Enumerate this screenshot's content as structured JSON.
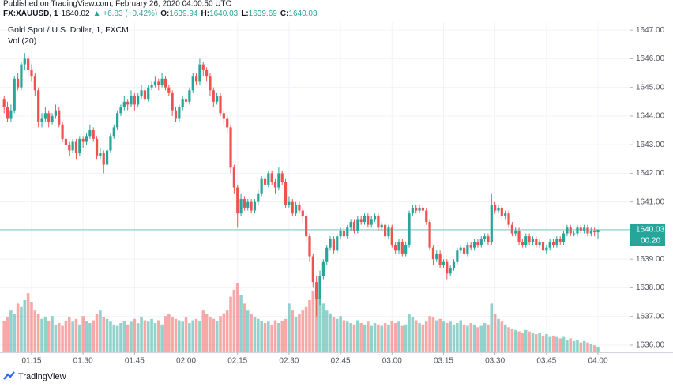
{
  "header": {
    "published": "Published on TradingView.com, February 26, 2020 04:00:50 UTC",
    "symbol": "FX:XAUUSD, 1",
    "last": "1640.02",
    "change": "▲ +6.83 (+0.42%)",
    "fields": [
      {
        "label": "O:",
        "value": "1639.94"
      },
      {
        "label": "H:",
        "value": "1640.03"
      },
      {
        "label": "L:",
        "value": "1639.69"
      },
      {
        "label": "C:",
        "value": "1640.03"
      }
    ]
  },
  "footer": {
    "brand": "TradingView"
  },
  "chart_data": {
    "type": "candlestick",
    "title": "Gold Spot / U.S. Dollar, 1, FXCM",
    "volume_label": "Vol (20)",
    "up_color": "#26a69a",
    "down_color": "#ef5350",
    "grid": true,
    "price_line": 1640.03,
    "countdown": "00:20",
    "xlim": [
      -1.2,
      182.2
    ],
    "ylim": [
      1635.75,
      1647.28
    ],
    "y2lim": [
      0,
      475
    ],
    "xticks": [
      {
        "value": 8,
        "label": "01:15"
      },
      {
        "value": 23,
        "label": "01:30"
      },
      {
        "value": 38,
        "label": "01:45"
      },
      {
        "value": 53,
        "label": "02:00"
      },
      {
        "value": 68,
        "label": "02:15"
      },
      {
        "value": 83,
        "label": "02:30"
      },
      {
        "value": 98,
        "label": "02:45"
      },
      {
        "value": 113,
        "label": "03:00"
      },
      {
        "value": 128,
        "label": "03:15"
      },
      {
        "value": 143,
        "label": "03:30"
      },
      {
        "value": 158,
        "label": "03:45"
      },
      {
        "value": 173,
        "label": "04:00"
      }
    ],
    "yticks": [
      {
        "value": 1636,
        "label": "1636.00"
      },
      {
        "value": 1637,
        "label": "1637.00"
      },
      {
        "value": 1638,
        "label": "1638.00"
      },
      {
        "value": 1639,
        "label": "1639.00"
      },
      {
        "value": 1640,
        "label": "1640.00"
      },
      {
        "value": 1641,
        "label": "1641.00"
      },
      {
        "value": 1642,
        "label": "1642.00"
      },
      {
        "value": 1643,
        "label": "1643.00"
      },
      {
        "value": 1644,
        "label": "1644.00"
      },
      {
        "value": 1645,
        "label": "1645.00"
      },
      {
        "value": 1646,
        "label": "1646.00"
      },
      {
        "value": 1647,
        "label": "1647.00"
      }
    ],
    "ohlc": [
      [
        1644.6,
        1644.7,
        1644.1,
        1644.3
      ],
      [
        1644.3,
        1644.5,
        1643.8,
        1643.9
      ],
      [
        1643.9,
        1644.4,
        1643.8,
        1644.2
      ],
      [
        1644.2,
        1645.4,
        1644.1,
        1645.3
      ],
      [
        1645.3,
        1645.5,
        1644.9,
        1645.0
      ],
      [
        1645.0,
        1645.9,
        1644.9,
        1645.8
      ],
      [
        1645.8,
        1646.2,
        1645.6,
        1646.0
      ],
      [
        1646.0,
        1646.1,
        1645.4,
        1645.6
      ],
      [
        1645.6,
        1645.8,
        1645.2,
        1645.4
      ],
      [
        1645.4,
        1645.5,
        1644.7,
        1644.9
      ],
      [
        1644.9,
        1645.0,
        1643.6,
        1643.8
      ],
      [
        1643.8,
        1644.1,
        1643.6,
        1643.9
      ],
      [
        1643.9,
        1644.3,
        1643.8,
        1644.1
      ],
      [
        1644.1,
        1644.2,
        1643.6,
        1643.8
      ],
      [
        1643.8,
        1644.1,
        1643.7,
        1644.0
      ],
      [
        1644.0,
        1644.4,
        1643.9,
        1644.2
      ],
      [
        1644.2,
        1644.3,
        1643.6,
        1643.7
      ],
      [
        1643.7,
        1643.8,
        1643.1,
        1643.2
      ],
      [
        1643.2,
        1643.4,
        1642.9,
        1643.0
      ],
      [
        1643.0,
        1643.1,
        1642.6,
        1642.8
      ],
      [
        1642.8,
        1643.2,
        1642.7,
        1643.1
      ],
      [
        1643.1,
        1643.2,
        1642.5,
        1642.7
      ],
      [
        1642.7,
        1643.3,
        1642.6,
        1643.2
      ],
      [
        1643.2,
        1643.3,
        1642.9,
        1643.1
      ],
      [
        1643.1,
        1643.4,
        1643.0,
        1643.3
      ],
      [
        1643.3,
        1643.7,
        1643.2,
        1643.5
      ],
      [
        1643.5,
        1643.6,
        1643.1,
        1643.2
      ],
      [
        1643.2,
        1643.3,
        1642.5,
        1642.6
      ],
      [
        1642.6,
        1642.9,
        1642.5,
        1642.7
      ],
      [
        1642.7,
        1642.8,
        1642.0,
        1642.3
      ],
      [
        1642.3,
        1642.9,
        1642.2,
        1642.8
      ],
      [
        1642.8,
        1643.4,
        1642.7,
        1643.3
      ],
      [
        1643.3,
        1643.7,
        1643.2,
        1643.6
      ],
      [
        1643.6,
        1644.2,
        1643.5,
        1644.1
      ],
      [
        1644.1,
        1644.4,
        1644.0,
        1644.3
      ],
      [
        1644.3,
        1644.7,
        1644.2,
        1644.5
      ],
      [
        1644.5,
        1644.6,
        1644.2,
        1644.4
      ],
      [
        1644.4,
        1644.9,
        1644.3,
        1644.7
      ],
      [
        1644.7,
        1644.8,
        1644.2,
        1644.4
      ],
      [
        1644.4,
        1644.8,
        1644.3,
        1644.7
      ],
      [
        1644.7,
        1645.1,
        1644.6,
        1644.9
      ],
      [
        1644.9,
        1645.0,
        1644.5,
        1644.6
      ],
      [
        1644.6,
        1645.1,
        1644.5,
        1645.0
      ],
      [
        1645.0,
        1645.2,
        1644.9,
        1645.1
      ],
      [
        1645.1,
        1645.4,
        1645.0,
        1645.2
      ],
      [
        1645.2,
        1645.3,
        1644.9,
        1645.1
      ],
      [
        1645.1,
        1645.5,
        1645.0,
        1645.3
      ],
      [
        1645.3,
        1645.4,
        1644.9,
        1645.0
      ],
      [
        1645.0,
        1645.1,
        1644.7,
        1644.8
      ],
      [
        1644.8,
        1644.9,
        1644.0,
        1644.2
      ],
      [
        1644.2,
        1644.3,
        1643.8,
        1643.9
      ],
      [
        1643.9,
        1644.4,
        1643.8,
        1644.3
      ],
      [
        1644.3,
        1644.7,
        1644.2,
        1644.6
      ],
      [
        1644.6,
        1644.7,
        1644.3,
        1644.5
      ],
      [
        1644.5,
        1645.0,
        1644.4,
        1644.9
      ],
      [
        1644.9,
        1645.5,
        1644.8,
        1645.4
      ],
      [
        1645.4,
        1645.5,
        1645.1,
        1645.2
      ],
      [
        1645.2,
        1646.0,
        1645.1,
        1645.8
      ],
      [
        1645.8,
        1645.9,
        1645.4,
        1645.6
      ],
      [
        1645.6,
        1645.7,
        1645.2,
        1645.4
      ],
      [
        1645.4,
        1645.5,
        1644.7,
        1644.9
      ],
      [
        1644.9,
        1645.0,
        1644.3,
        1644.5
      ],
      [
        1644.5,
        1644.8,
        1644.4,
        1644.7
      ],
      [
        1644.7,
        1644.8,
        1644.0,
        1644.1
      ],
      [
        1644.1,
        1644.2,
        1643.7,
        1643.9
      ],
      [
        1643.9,
        1644.0,
        1643.4,
        1643.6
      ],
      [
        1643.6,
        1643.7,
        1642.0,
        1642.2
      ],
      [
        1642.2,
        1642.3,
        1641.3,
        1641.5
      ],
      [
        1641.5,
        1641.6,
        1640.1,
        1640.6
      ],
      [
        1640.6,
        1641.3,
        1640.5,
        1641.1
      ],
      [
        1641.1,
        1641.2,
        1640.7,
        1640.8
      ],
      [
        1640.8,
        1641.1,
        1640.7,
        1641.0
      ],
      [
        1641.0,
        1641.1,
        1640.6,
        1640.7
      ],
      [
        1640.7,
        1641.1,
        1640.6,
        1641.0
      ],
      [
        1641.0,
        1641.4,
        1640.9,
        1641.3
      ],
      [
        1641.3,
        1641.9,
        1641.2,
        1641.8
      ],
      [
        1641.8,
        1641.9,
        1641.4,
        1641.6
      ],
      [
        1641.6,
        1642.1,
        1641.5,
        1642.0
      ],
      [
        1642.0,
        1642.1,
        1641.6,
        1641.7
      ],
      [
        1641.7,
        1641.8,
        1641.3,
        1641.5
      ],
      [
        1641.5,
        1642.2,
        1641.4,
        1642.0
      ],
      [
        1642.0,
        1642.1,
        1641.6,
        1641.7
      ],
      [
        1641.7,
        1641.8,
        1640.8,
        1640.9
      ],
      [
        1640.9,
        1641.2,
        1640.8,
        1641.0
      ],
      [
        1641.0,
        1641.1,
        1640.5,
        1640.6
      ],
      [
        1640.6,
        1641.0,
        1640.5,
        1640.9
      ],
      [
        1640.9,
        1641.0,
        1640.6,
        1640.7
      ],
      [
        1640.7,
        1640.8,
        1640.3,
        1640.5
      ],
      [
        1640.5,
        1640.6,
        1639.6,
        1639.8
      ],
      [
        1639.8,
        1639.9,
        1638.9,
        1639.1
      ],
      [
        1639.1,
        1639.2,
        1638.0,
        1638.2
      ],
      [
        1638.2,
        1638.4,
        1637.0,
        1637.6
      ],
      [
        1637.6,
        1638.6,
        1637.4,
        1638.4
      ],
      [
        1638.4,
        1639.0,
        1638.3,
        1638.9
      ],
      [
        1638.9,
        1639.5,
        1638.8,
        1639.4
      ],
      [
        1639.4,
        1639.8,
        1639.3,
        1639.7
      ],
      [
        1639.7,
        1639.8,
        1639.2,
        1639.3
      ],
      [
        1639.3,
        1639.9,
        1639.2,
        1639.8
      ],
      [
        1639.8,
        1640.1,
        1639.7,
        1640.0
      ],
      [
        1640.0,
        1640.1,
        1639.7,
        1639.8
      ],
      [
        1639.8,
        1640.2,
        1639.7,
        1640.1
      ],
      [
        1640.1,
        1640.4,
        1640.0,
        1640.3
      ],
      [
        1640.3,
        1640.4,
        1639.9,
        1640.0
      ],
      [
        1640.0,
        1640.5,
        1639.9,
        1640.4
      ],
      [
        1640.4,
        1640.5,
        1640.2,
        1640.3
      ],
      [
        1640.3,
        1640.6,
        1640.2,
        1640.5
      ],
      [
        1640.5,
        1640.6,
        1640.1,
        1640.2
      ],
      [
        1640.2,
        1640.5,
        1640.1,
        1640.4
      ],
      [
        1640.4,
        1640.6,
        1640.3,
        1640.5
      ],
      [
        1640.5,
        1640.6,
        1640.0,
        1640.1
      ],
      [
        1640.1,
        1640.3,
        1640.0,
        1640.2
      ],
      [
        1640.2,
        1640.3,
        1639.7,
        1639.8
      ],
      [
        1639.8,
        1640.2,
        1639.7,
        1640.1
      ],
      [
        1640.1,
        1640.2,
        1639.4,
        1639.5
      ],
      [
        1639.5,
        1639.6,
        1639.2,
        1639.3
      ],
      [
        1639.3,
        1639.7,
        1639.2,
        1639.6
      ],
      [
        1639.6,
        1639.7,
        1639.1,
        1639.2
      ],
      [
        1639.2,
        1639.6,
        1639.1,
        1639.5
      ],
      [
        1639.5,
        1640.7,
        1639.4,
        1640.6
      ],
      [
        1640.6,
        1640.9,
        1640.5,
        1640.8
      ],
      [
        1640.8,
        1640.9,
        1640.6,
        1640.7
      ],
      [
        1640.7,
        1640.9,
        1640.6,
        1640.8
      ],
      [
        1640.8,
        1640.9,
        1640.6,
        1640.7
      ],
      [
        1640.7,
        1640.8,
        1640.2,
        1640.3
      ],
      [
        1640.3,
        1640.4,
        1639.3,
        1639.4
      ],
      [
        1639.4,
        1639.5,
        1638.8,
        1639.0
      ],
      [
        1639.0,
        1639.3,
        1638.9,
        1639.2
      ],
      [
        1639.2,
        1639.3,
        1638.7,
        1638.8
      ],
      [
        1638.8,
        1639.0,
        1638.7,
        1638.9
      ],
      [
        1638.9,
        1639.0,
        1638.3,
        1638.5
      ],
      [
        1638.5,
        1638.8,
        1638.4,
        1638.7
      ],
      [
        1638.7,
        1639.0,
        1638.6,
        1638.9
      ],
      [
        1638.9,
        1639.4,
        1638.8,
        1639.3
      ],
      [
        1639.3,
        1639.5,
        1639.2,
        1639.4
      ],
      [
        1639.4,
        1639.5,
        1639.1,
        1639.2
      ],
      [
        1639.2,
        1639.6,
        1639.1,
        1639.5
      ],
      [
        1639.5,
        1639.6,
        1639.3,
        1639.4
      ],
      [
        1639.4,
        1639.7,
        1639.3,
        1639.6
      ],
      [
        1639.6,
        1639.7,
        1639.4,
        1639.5
      ],
      [
        1639.5,
        1639.8,
        1639.4,
        1639.7
      ],
      [
        1639.7,
        1639.9,
        1639.6,
        1639.8
      ],
      [
        1639.8,
        1639.9,
        1639.5,
        1639.6
      ],
      [
        1639.6,
        1641.3,
        1639.5,
        1640.9
      ],
      [
        1640.9,
        1641.0,
        1640.6,
        1640.7
      ],
      [
        1640.7,
        1640.9,
        1640.6,
        1640.8
      ],
      [
        1640.8,
        1640.9,
        1640.4,
        1640.5
      ],
      [
        1640.5,
        1640.7,
        1640.4,
        1640.6
      ],
      [
        1640.6,
        1640.7,
        1640.1,
        1640.2
      ],
      [
        1640.2,
        1640.3,
        1639.8,
        1639.9
      ],
      [
        1639.9,
        1640.1,
        1639.8,
        1640.0
      ],
      [
        1640.0,
        1640.1,
        1639.5,
        1639.6
      ],
      [
        1639.6,
        1639.7,
        1639.4,
        1639.5
      ],
      [
        1639.5,
        1639.9,
        1639.4,
        1639.8
      ],
      [
        1639.8,
        1639.9,
        1639.5,
        1639.6
      ],
      [
        1639.6,
        1639.8,
        1639.5,
        1639.7
      ],
      [
        1639.7,
        1639.8,
        1639.4,
        1639.5
      ],
      [
        1639.5,
        1639.7,
        1639.4,
        1639.6
      ],
      [
        1639.6,
        1639.7,
        1639.2,
        1639.3
      ],
      [
        1639.3,
        1639.5,
        1639.2,
        1639.4
      ],
      [
        1639.4,
        1639.7,
        1639.3,
        1639.6
      ],
      [
        1639.6,
        1639.7,
        1639.4,
        1639.5
      ],
      [
        1639.5,
        1639.8,
        1639.4,
        1639.7
      ],
      [
        1639.7,
        1639.8,
        1639.5,
        1639.6
      ],
      [
        1639.6,
        1640.0,
        1639.5,
        1639.9
      ],
      [
        1639.9,
        1640.2,
        1639.8,
        1640.1
      ],
      [
        1640.1,
        1640.2,
        1639.8,
        1639.9
      ],
      [
        1639.9,
        1640.0,
        1639.8,
        1639.9
      ],
      [
        1639.9,
        1640.2,
        1639.8,
        1640.1
      ],
      [
        1640.1,
        1640.2,
        1639.9,
        1640.0
      ],
      [
        1640.0,
        1640.2,
        1639.9,
        1640.1
      ],
      [
        1640.1,
        1640.2,
        1639.8,
        1639.9
      ],
      [
        1639.9,
        1640.1,
        1639.8,
        1640.0
      ],
      [
        1640.0,
        1640.1,
        1639.8,
        1639.94
      ],
      [
        1639.94,
        1640.03,
        1639.69,
        1640.03
      ]
    ],
    "volume": [
      45,
      50,
      60,
      55,
      70,
      65,
      75,
      85,
      72,
      60,
      55,
      48,
      50,
      45,
      52,
      40,
      42,
      38,
      45,
      50,
      44,
      48,
      40,
      52,
      45,
      42,
      46,
      55,
      60,
      50,
      48,
      44,
      40,
      38,
      42,
      45,
      40,
      44,
      48,
      42,
      50,
      46,
      44,
      48,
      42,
      46,
      40,
      52,
      55,
      50,
      48,
      46,
      44,
      50,
      42,
      46,
      48,
      45,
      60,
      55,
      50,
      48,
      45,
      52,
      56,
      60,
      80,
      90,
      100,
      82,
      70,
      60,
      55,
      50,
      48,
      45,
      42,
      44,
      40,
      46,
      42,
      45,
      48,
      70,
      60,
      50,
      55,
      60,
      65,
      75,
      88,
      95,
      78,
      70,
      60,
      56,
      50,
      48,
      52,
      46,
      44,
      42,
      40,
      46,
      42,
      40,
      44,
      38,
      42,
      40,
      38,
      42,
      40,
      45,
      42,
      44,
      38,
      40,
      55,
      50,
      46,
      42,
      40,
      44,
      52,
      50,
      46,
      48,
      44,
      42,
      44,
      40,
      42,
      46,
      40,
      38,
      42,
      40,
      36,
      38,
      42,
      40,
      70,
      55,
      48,
      44,
      40,
      36,
      34,
      32,
      30,
      28,
      32,
      30,
      28,
      26,
      28,
      24,
      26,
      22,
      24,
      22,
      20,
      22,
      18,
      20,
      16,
      18,
      14,
      16,
      14,
      12,
      10,
      8
    ]
  }
}
